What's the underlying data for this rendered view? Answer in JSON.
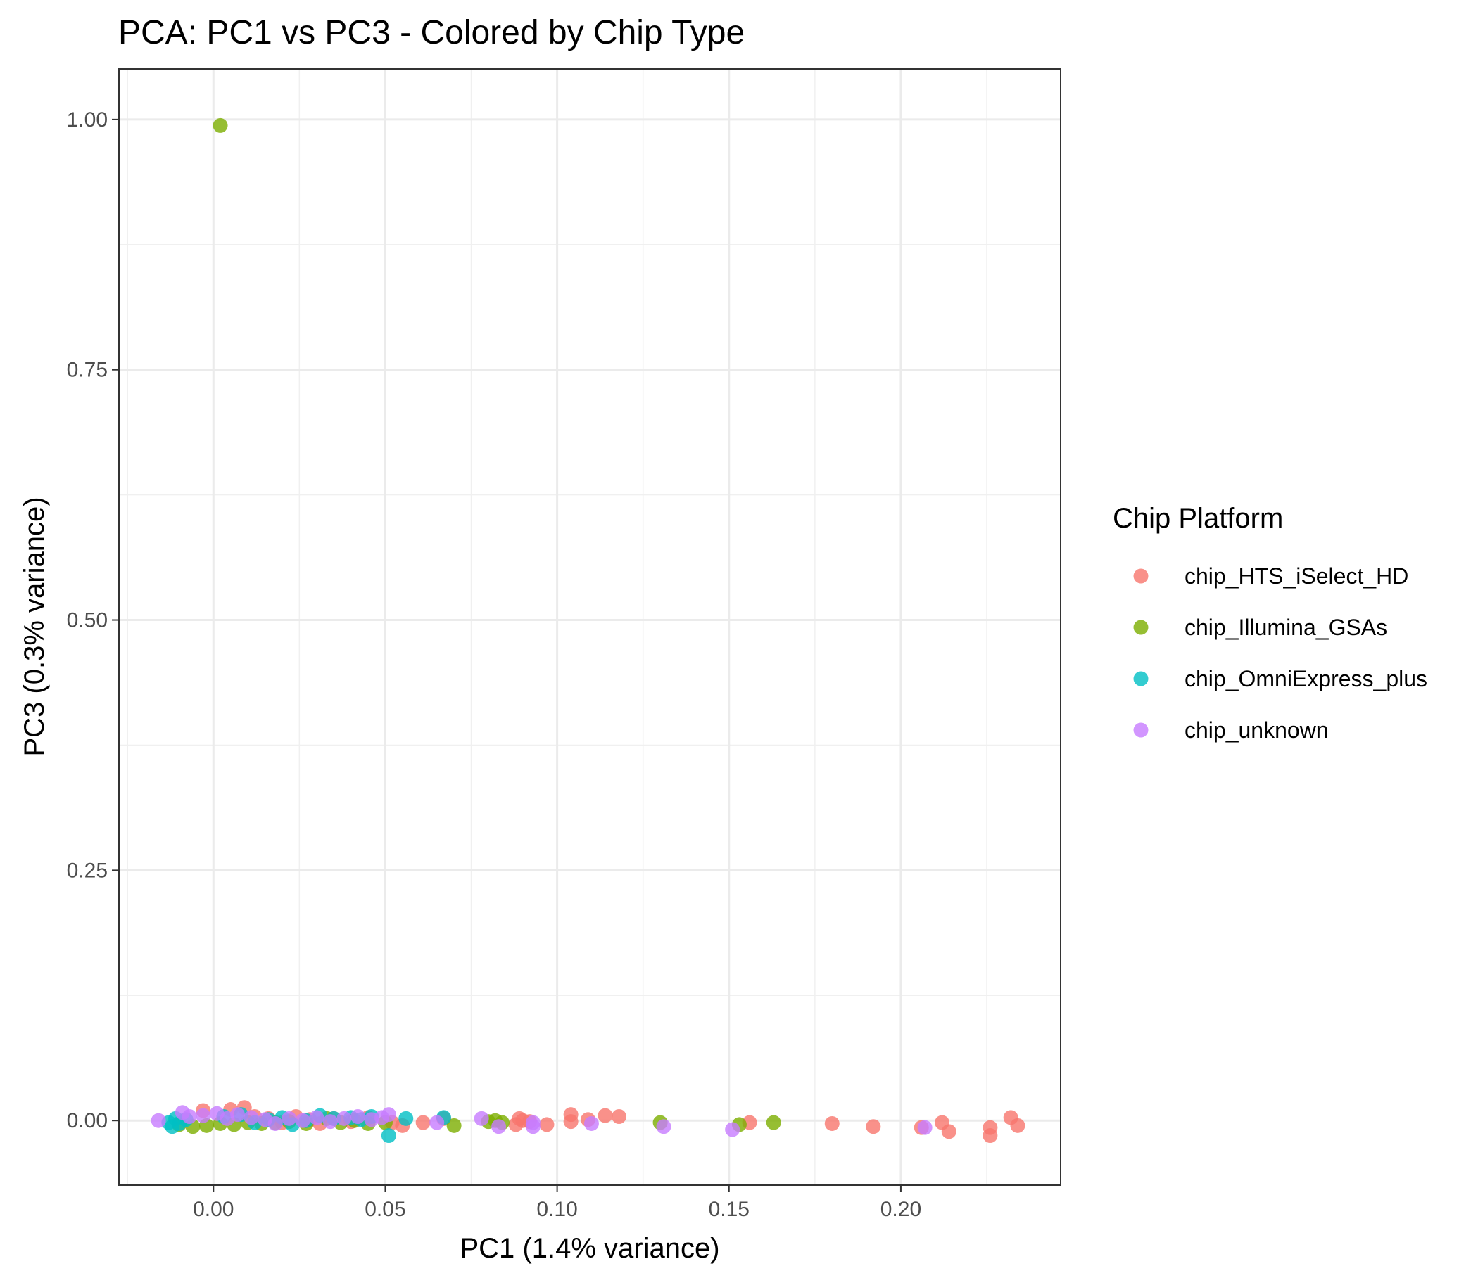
{
  "chart_data": {
    "type": "scatter",
    "title": "PCA: PC1 vs PC3 - Colored by Chip Type",
    "xlabel": "PC1 (1.4% variance)",
    "ylabel": "PC3 (0.3% variance)",
    "xlim": [
      -0.0275,
      0.2465
    ],
    "ylim": [
      -0.0645,
      1.0505
    ],
    "x_ticks": [
      0.0,
      0.05,
      0.1,
      0.15,
      0.2
    ],
    "x_tick_labels": [
      "0.00",
      "0.05",
      "0.10",
      "0.15",
      "0.20"
    ],
    "y_ticks": [
      0.0,
      0.25,
      0.5,
      0.75,
      1.0
    ],
    "y_tick_labels": [
      "0.00",
      "0.25",
      "0.50",
      "0.75",
      "1.00"
    ],
    "grid": true,
    "legend_title": "Chip Platform",
    "legend_position": "right",
    "series": [
      {
        "name": "chip_HTS_iSelect_HD",
        "color": "#F8766D",
        "points": [
          [
            -0.003,
            0.01
          ],
          [
            0.005,
            0.011
          ],
          [
            0.009,
            0.013
          ],
          [
            0.012,
            0.004
          ],
          [
            0.016,
            0.002
          ],
          [
            0.02,
            -0.002
          ],
          [
            0.024,
            0.004
          ],
          [
            0.028,
            0.001
          ],
          [
            0.031,
            -0.003
          ],
          [
            0.035,
            0.002
          ],
          [
            0.04,
            -0.001
          ],
          [
            0.045,
            0.003
          ],
          [
            0.052,
            -0.002
          ],
          [
            0.055,
            -0.005
          ],
          [
            0.061,
            -0.002
          ],
          [
            0.067,
            0.002
          ],
          [
            0.088,
            -0.004
          ],
          [
            0.09,
            0.0
          ],
          [
            0.089,
            0.002
          ],
          [
            0.092,
            -0.001
          ],
          [
            0.097,
            -0.004
          ],
          [
            0.104,
            0.006
          ],
          [
            0.104,
            -0.001
          ],
          [
            0.109,
            0.001
          ],
          [
            0.114,
            0.005
          ],
          [
            0.118,
            0.004
          ],
          [
            0.156,
            -0.002
          ],
          [
            0.18,
            -0.003
          ],
          [
            0.192,
            -0.006
          ],
          [
            0.206,
            -0.007
          ],
          [
            0.212,
            -0.002
          ],
          [
            0.214,
            -0.011
          ],
          [
            0.226,
            -0.007
          ],
          [
            0.226,
            -0.015
          ],
          [
            0.232,
            0.003
          ],
          [
            0.234,
            -0.005
          ]
        ]
      },
      {
        "name": "chip_Illumina_GSAs",
        "color": "#7CAE00",
        "points": [
          [
            0.002,
            0.994
          ],
          [
            -0.01,
            -0.004
          ],
          [
            -0.006,
            -0.006
          ],
          [
            -0.002,
            -0.005
          ],
          [
            0.002,
            -0.003
          ],
          [
            0.006,
            -0.004
          ],
          [
            0.01,
            -0.002
          ],
          [
            0.014,
            -0.003
          ],
          [
            0.018,
            -0.002
          ],
          [
            0.022,
            -0.001
          ],
          [
            0.027,
            -0.003
          ],
          [
            0.033,
            0.002
          ],
          [
            0.037,
            -0.002
          ],
          [
            0.041,
            0.0
          ],
          [
            0.045,
            -0.003
          ],
          [
            0.05,
            -0.002
          ],
          [
            0.07,
            -0.005
          ],
          [
            0.08,
            -0.001
          ],
          [
            0.082,
            0.0
          ],
          [
            0.084,
            -0.002
          ],
          [
            0.13,
            -0.002
          ],
          [
            0.153,
            -0.004
          ],
          [
            0.163,
            -0.002
          ]
        ]
      },
      {
        "name": "chip_OmniExpress_plus",
        "color": "#00BFC4",
        "points": [
          [
            -0.013,
            -0.002
          ],
          [
            -0.012,
            -0.006
          ],
          [
            -0.011,
            0.002
          ],
          [
            -0.01,
            -0.003
          ],
          [
            -0.008,
            0.001
          ],
          [
            0.003,
            0.004
          ],
          [
            0.008,
            0.006
          ],
          [
            0.012,
            -0.002
          ],
          [
            0.016,
            0.001
          ],
          [
            0.02,
            0.003
          ],
          [
            0.023,
            -0.004
          ],
          [
            0.027,
            0.0
          ],
          [
            0.031,
            0.005
          ],
          [
            0.035,
            0.002
          ],
          [
            0.04,
            0.003
          ],
          [
            0.043,
            0.001
          ],
          [
            0.046,
            0.004
          ],
          [
            0.051,
            -0.015
          ],
          [
            0.056,
            0.002
          ],
          [
            0.067,
            0.003
          ]
        ]
      },
      {
        "name": "chip_unknown",
        "color": "#C77CFF",
        "points": [
          [
            -0.016,
            0.0
          ],
          [
            -0.009,
            0.008
          ],
          [
            -0.007,
            0.004
          ],
          [
            -0.003,
            0.005
          ],
          [
            0.001,
            0.007
          ],
          [
            0.004,
            0.002
          ],
          [
            0.007,
            0.006
          ],
          [
            0.011,
            0.003
          ],
          [
            0.015,
            0.001
          ],
          [
            0.018,
            -0.003
          ],
          [
            0.022,
            0.002
          ],
          [
            0.026,
            0.0
          ],
          [
            0.03,
            0.003
          ],
          [
            0.034,
            -0.001
          ],
          [
            0.038,
            0.002
          ],
          [
            0.042,
            0.004
          ],
          [
            0.046,
            0.001
          ],
          [
            0.049,
            0.003
          ],
          [
            0.051,
            0.006
          ],
          [
            0.065,
            -0.002
          ],
          [
            0.078,
            0.002
          ],
          [
            0.083,
            -0.006
          ],
          [
            0.093,
            -0.006
          ],
          [
            0.093,
            -0.002
          ],
          [
            0.11,
            -0.003
          ],
          [
            0.131,
            -0.006
          ],
          [
            0.151,
            -0.009
          ],
          [
            0.207,
            -0.007
          ]
        ]
      }
    ]
  }
}
